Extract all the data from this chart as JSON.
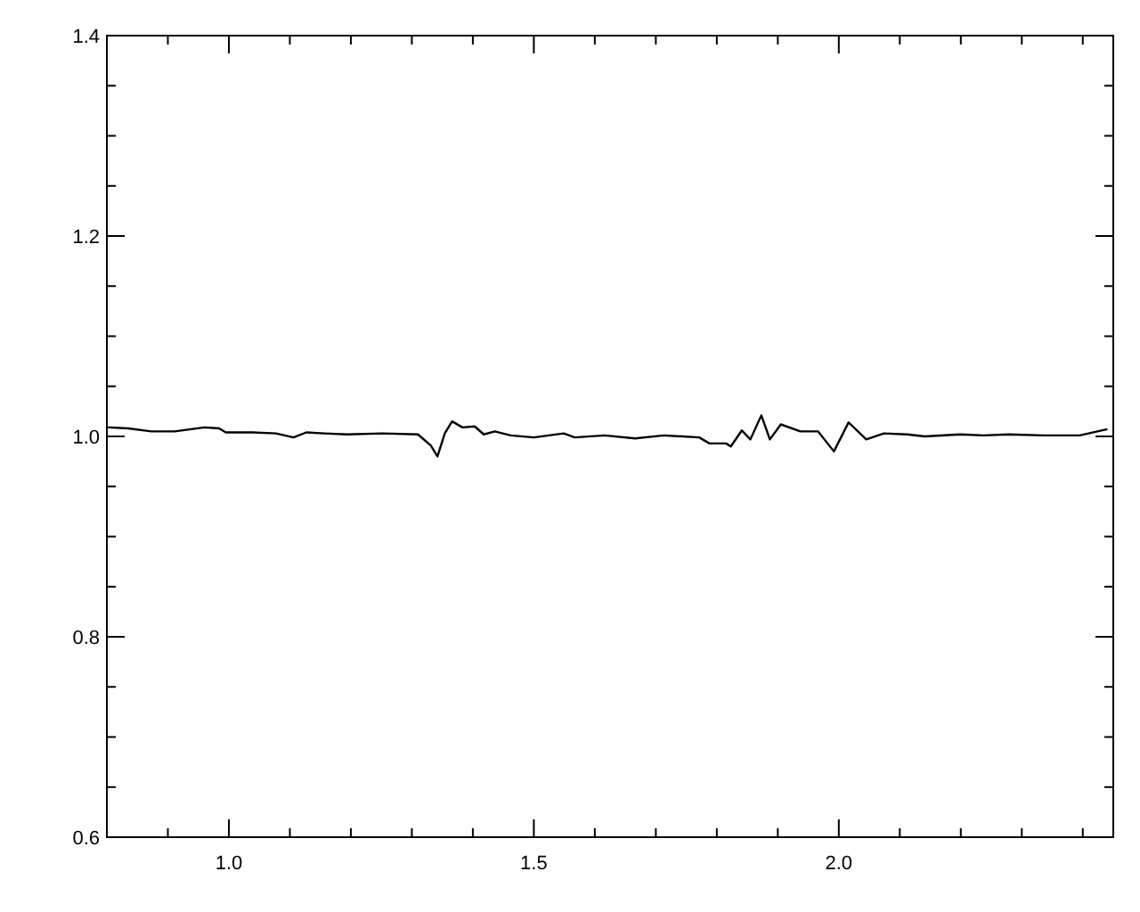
{
  "chart_data": {
    "type": "line",
    "xlim": [
      0.8,
      2.45
    ],
    "ylim": [
      0.6,
      1.4
    ],
    "xticks": [
      {
        "value": 0.9,
        "label": null
      },
      {
        "value": 1,
        "label": "1.0"
      },
      {
        "value": 1.1,
        "label": null
      },
      {
        "value": 1.2,
        "label": null
      },
      {
        "value": 1.3,
        "label": null
      },
      {
        "value": 1.4,
        "label": null
      },
      {
        "value": 1.5,
        "label": "1.5"
      },
      {
        "value": 1.6,
        "label": null
      },
      {
        "value": 1.7,
        "label": null
      },
      {
        "value": 1.8,
        "label": null
      },
      {
        "value": 1.9,
        "label": null
      },
      {
        "value": 2,
        "label": "2.0"
      },
      {
        "value": 2.1,
        "label": null
      },
      {
        "value": 2.2,
        "label": null
      },
      {
        "value": 2.3,
        "label": null
      },
      {
        "value": 2.4,
        "label": null
      }
    ],
    "yticks": [
      {
        "value": 0.6,
        "label": "0.6"
      },
      {
        "value": 0.65,
        "label": null
      },
      {
        "value": 0.7,
        "label": null
      },
      {
        "value": 0.75,
        "label": null
      },
      {
        "value": 0.8,
        "label": "0.8"
      },
      {
        "value": 0.85,
        "label": null
      },
      {
        "value": 0.9,
        "label": null
      },
      {
        "value": 0.95,
        "label": null
      },
      {
        "value": 1,
        "label": "1.0"
      },
      {
        "value": 1.05,
        "label": null
      },
      {
        "value": 1.1,
        "label": null
      },
      {
        "value": 1.15,
        "label": null
      },
      {
        "value": 1.2,
        "label": "1.2"
      },
      {
        "value": 1.25,
        "label": null
      },
      {
        "value": 1.3,
        "label": null
      },
      {
        "value": 1.35,
        "label": null
      },
      {
        "value": 1.4,
        "label": "1.4"
      }
    ],
    "marker": "none",
    "line_style": "solid",
    "series": [
      {
        "color": "#000000",
        "x": [
          0.803,
          0.835,
          0.873,
          0.911,
          0.96,
          0.984,
          0.995,
          1.039,
          1.077,
          1.106,
          1.127,
          1.156,
          1.194,
          1.252,
          1.31,
          1.331,
          1.342,
          1.354,
          1.366,
          1.383,
          1.403,
          1.418,
          1.436,
          1.462,
          1.5,
          1.549,
          1.567,
          1.616,
          1.666,
          1.713,
          1.771,
          1.788,
          1.815,
          1.823,
          1.841,
          1.855,
          1.873,
          1.887,
          1.905,
          1.937,
          1.966,
          1.992,
          2.016,
          2.045,
          2.074,
          2.112,
          2.141,
          2.199,
          2.237,
          2.278,
          2.336,
          2.395,
          2.424,
          2.439
        ],
        "values": [
          1.009,
          1.008,
          1.005,
          1.005,
          1.009,
          1.008,
          1.004,
          1.004,
          1.003,
          0.999,
          1.004,
          1.003,
          1.002,
          1.003,
          1.002,
          0.991,
          0.98,
          1.003,
          1.015,
          1.009,
          1.01,
          1.002,
          1.005,
          1.001,
          0.999,
          1.003,
          0.999,
          1.001,
          0.998,
          1.001,
          0.999,
          0.993,
          0.993,
          0.99,
          1.006,
          0.997,
          1.021,
          0.997,
          1.012,
          1.005,
          1.005,
          0.985,
          1.014,
          0.997,
          1.003,
          1.002,
          1.0,
          1.002,
          1.001,
          1.002,
          1.001,
          1.001,
          1.005,
          1.007
        ]
      }
    ]
  }
}
